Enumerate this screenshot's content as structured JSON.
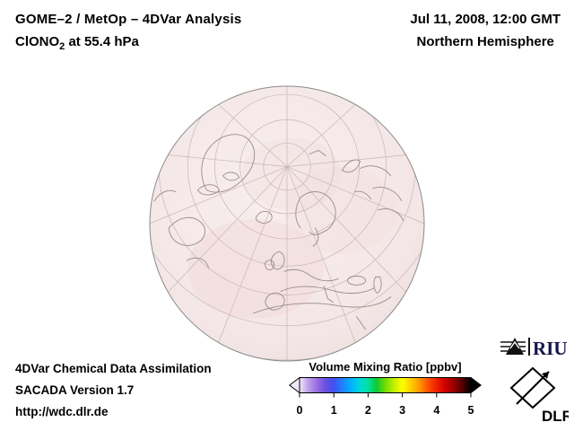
{
  "header": {
    "title": "GOME–2 / MetOp – 4DVar Analysis",
    "compound": "ClONO",
    "compound_sub": "2",
    "level_suffix": " at 55.4 hPa",
    "datetime": "Jul 11, 2008, 12:00 GMT",
    "region": "Northern Hemisphere"
  },
  "globe": {
    "projection_note": "orthographic globe, Northern Hemisphere",
    "fill_color": "#f5e9e9",
    "graticule_color": "#c9b6b6",
    "coastline_color": "#9c8b8b"
  },
  "footer": {
    "line1": "4DVar Chemical Data Assimilation",
    "line2": "SACADA Version 1.7",
    "line3": "http://wdc.dlr.de"
  },
  "colorbar": {
    "title": "Volume Mixing Ratio [ppbv]",
    "min": 0,
    "max": 5,
    "ticks": [
      "0",
      "1",
      "2",
      "3",
      "4",
      "5"
    ],
    "colors": [
      "#f0e8fa",
      "#c0a0ec",
      "#9a6ee0",
      "#6a50e0",
      "#4050f0",
      "#2080ff",
      "#00b0ff",
      "#00d8d8",
      "#00e0a0",
      "#10c830",
      "#70dc00",
      "#c0ee00",
      "#ffff00",
      "#ffcc00",
      "#ff9800",
      "#ff5000",
      "#f02000",
      "#cc0000",
      "#980000",
      "#500000",
      "#000000"
    ]
  },
  "logos": {
    "riu_label": "RIU",
    "dlr_label": "DLR"
  }
}
